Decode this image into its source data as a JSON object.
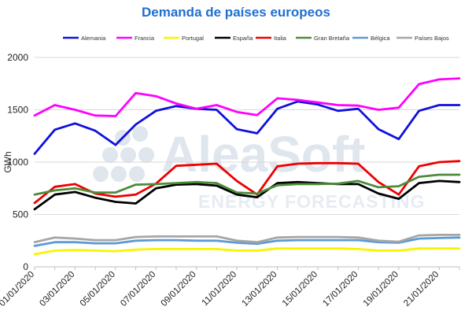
{
  "chart_data": {
    "type": "line",
    "title": "Demanda de países europeos",
    "ylabel": "GWh",
    "xlabel": "",
    "ylim": [
      0,
      2000
    ],
    "yticks": [
      0,
      500,
      1000,
      1500,
      2000
    ],
    "grid": true,
    "legend_position": "top",
    "x": [
      "01/01/2020",
      "02/01/2020",
      "03/01/2020",
      "04/01/2020",
      "05/01/2020",
      "06/01/2020",
      "07/01/2020",
      "08/01/2020",
      "09/01/2020",
      "10/01/2020",
      "11/01/2020",
      "12/01/2020",
      "13/01/2020",
      "14/01/2020",
      "15/01/2020",
      "16/01/2020",
      "17/01/2020",
      "18/01/2020",
      "19/01/2020",
      "20/01/2020",
      "21/01/2020",
      "22/01/2020"
    ],
    "xtick_labels": [
      "01/01/2020",
      "03/01/2020",
      "05/01/2020",
      "07/01/2020",
      "09/01/2020",
      "11/01/2020",
      "13/01/2020",
      "15/01/2020",
      "17/01/2020",
      "19/01/2020",
      "21/01/2020"
    ],
    "series": [
      {
        "name": "Alemania",
        "color": "#1010DD",
        "values": [
          1080,
          1310,
          1370,
          1300,
          1165,
          1360,
          1490,
          1535,
          1510,
          1500,
          1315,
          1275,
          1510,
          1580,
          1550,
          1490,
          1510,
          1315,
          1220,
          1490,
          1545,
          1545
        ]
      },
      {
        "name": "Francia",
        "color": "#FF00FF",
        "values": [
          1445,
          1545,
          1500,
          1445,
          1440,
          1660,
          1630,
          1560,
          1510,
          1545,
          1480,
          1450,
          1610,
          1595,
          1570,
          1545,
          1540,
          1500,
          1520,
          1745,
          1790,
          1800
        ]
      },
      {
        "name": "Portugal",
        "color": "#F5F500",
        "values": [
          120,
          155,
          160,
          155,
          150,
          165,
          170,
          170,
          170,
          170,
          155,
          155,
          175,
          175,
          175,
          175,
          170,
          155,
          155,
          175,
          175,
          175
        ]
      },
      {
        "name": "España",
        "color": "#000000",
        "values": [
          550,
          690,
          715,
          660,
          620,
          605,
          750,
          785,
          790,
          775,
          690,
          665,
          800,
          810,
          800,
          790,
          790,
          700,
          650,
          800,
          820,
          810
        ]
      },
      {
        "name": "Italia",
        "color": "#EE0000",
        "values": [
          610,
          765,
          790,
          700,
          670,
          690,
          795,
          965,
          975,
          985,
          820,
          690,
          960,
          985,
          990,
          990,
          985,
          810,
          690,
          960,
          1000,
          1010
        ]
      },
      {
        "name": "Gran Bretaña",
        "color": "#4C8C3A",
        "values": [
          690,
          730,
          750,
          710,
          710,
          785,
          790,
          800,
          810,
          800,
          710,
          700,
          780,
          790,
          790,
          795,
          820,
          760,
          770,
          860,
          880,
          880
        ]
      },
      {
        "name": "Bélgica",
        "color": "#5B9BD5",
        "values": [
          200,
          235,
          235,
          225,
          225,
          250,
          255,
          255,
          250,
          250,
          230,
          220,
          250,
          255,
          255,
          255,
          255,
          235,
          230,
          270,
          275,
          280
        ]
      },
      {
        "name": "Países Bajos",
        "color": "#A6A6A6",
        "values": [
          235,
          280,
          270,
          255,
          255,
          285,
          290,
          290,
          290,
          290,
          250,
          235,
          280,
          285,
          285,
          285,
          280,
          250,
          240,
          300,
          305,
          305
        ]
      }
    ]
  },
  "watermark": {
    "brand": "AleaSoft",
    "tagline": "ENERGY FORECASTING"
  }
}
